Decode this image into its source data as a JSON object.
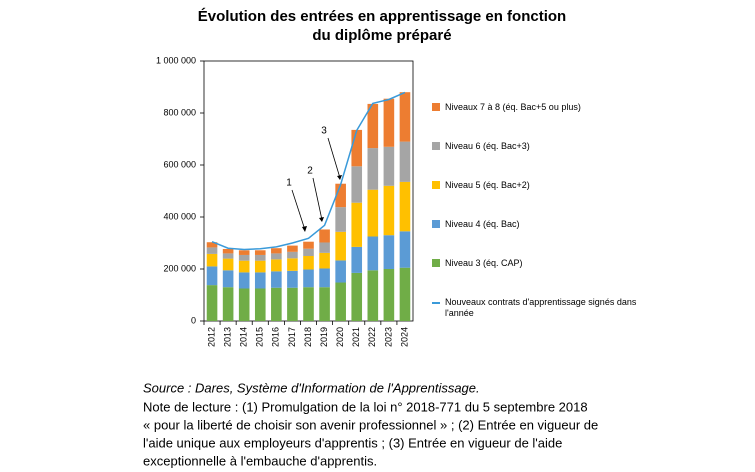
{
  "chart_data": {
    "type": "bar",
    "stacked": true,
    "title": [
      "Évolution des entrées en apprentissage en fonction",
      "du diplôme préparé"
    ],
    "categories": [
      "2012",
      "2013",
      "2014",
      "2015",
      "2016",
      "2017",
      "2018",
      "2019",
      "2020",
      "2021",
      "2022",
      "2023",
      "2024"
    ],
    "series": [
      {
        "name": "Niveau 3 (éq. CAP)",
        "color": "#70ad47",
        "values": [
          138000,
          130000,
          125000,
          125000,
          128000,
          128000,
          130000,
          130000,
          148000,
          185000,
          195000,
          200000,
          205000
        ]
      },
      {
        "name": "Niveau 4 (éq. Bac)",
        "color": "#5b9bd5",
        "values": [
          72000,
          65000,
          62000,
          62000,
          63000,
          65000,
          68000,
          72000,
          85000,
          100000,
          130000,
          130000,
          140000
        ]
      },
      {
        "name": "Niveau 5 (éq. Bac+2)",
        "color": "#ffc000",
        "values": [
          48000,
          45000,
          45000,
          45000,
          46000,
          48000,
          52000,
          60000,
          110000,
          170000,
          180000,
          190000,
          190000
        ]
      },
      {
        "name": "Niveau 6 (éq. Bac+3)",
        "color": "#a5a5a5",
        "values": [
          25000,
          20000,
          22000,
          22000,
          23000,
          25000,
          28000,
          40000,
          95000,
          140000,
          160000,
          150000,
          155000
        ]
      },
      {
        "name": "Niveaux 7 à 8 (éq.  Bac+5 ou plus)",
        "color": "#ed7d31",
        "values": [
          20000,
          17000,
          18000,
          18000,
          20000,
          24000,
          27000,
          50000,
          90000,
          140000,
          170000,
          185000,
          190000
        ]
      },
      {
        "name": "Nouveaux contrats d'apprentissage signés dans l'année",
        "type": "line",
        "color": "#3a9ad9",
        "values": [
          305000,
          280000,
          275000,
          278000,
          285000,
          300000,
          318000,
          368000,
          525000,
          733000,
          837000,
          852000,
          879000
        ]
      }
    ],
    "ylim": [
      0,
      1000000
    ],
    "yticks": [
      0,
      {
        "value": 200000,
        "label": "200 000"
      },
      {
        "value": 400000,
        "label": "400 000"
      },
      {
        "value": 600000,
        "label": "600 000"
      },
      {
        "value": 800000,
        "label": "800 000"
      },
      {
        "value": 1000000,
        "label": "1 000 000"
      }
    ],
    "grid": false,
    "annotations": [
      "1",
      "2",
      "3"
    ],
    "source": "Source : Dares, Système d'Information de l'Apprentissage.",
    "note": [
      "Note de lecture : (1) Promulgation de la loi n° 2018-771 du 5 septembre 2018",
      "« pour la liberté de choisir son avenir professionnel » ; (2) Entrée en vigueur de",
      "l'aide unique aux employeurs d'apprentis ; (3) Entrée en vigueur de l'aide",
      "exceptionnelle à l'embauche d'apprentis."
    ]
  }
}
